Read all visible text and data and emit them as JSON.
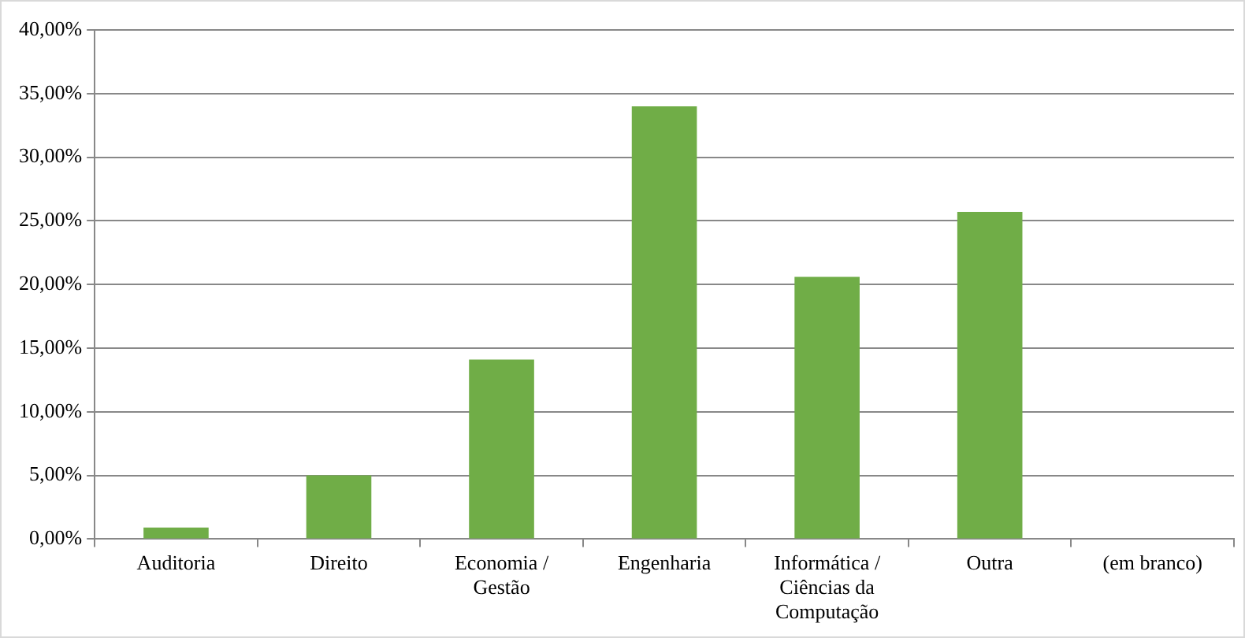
{
  "chart_data": {
    "type": "bar",
    "categories": [
      "Auditoria",
      "Direito",
      "Economia / Gestão",
      "Engenharia",
      "Informática / Ciências da Computação",
      "Outra",
      "(em branco)"
    ],
    "values": [
      0.9,
      5.0,
      14.1,
      34.0,
      20.6,
      25.7,
      0
    ],
    "color": "#70ad47",
    "ylim": [
      0,
      40
    ],
    "yticks": [
      {
        "value": 0,
        "label": "0,00%"
      },
      {
        "value": 5,
        "label": "5,00%"
      },
      {
        "value": 10,
        "label": "10,00%"
      },
      {
        "value": 15,
        "label": "15,00%"
      },
      {
        "value": 20,
        "label": "20,00%"
      },
      {
        "value": 25,
        "label": "25,00%"
      },
      {
        "value": 30,
        "label": "30,00%"
      },
      {
        "value": 35,
        "label": "35,00%"
      },
      {
        "value": 40,
        "label": "40,00%"
      }
    ],
    "grid": "y"
  }
}
